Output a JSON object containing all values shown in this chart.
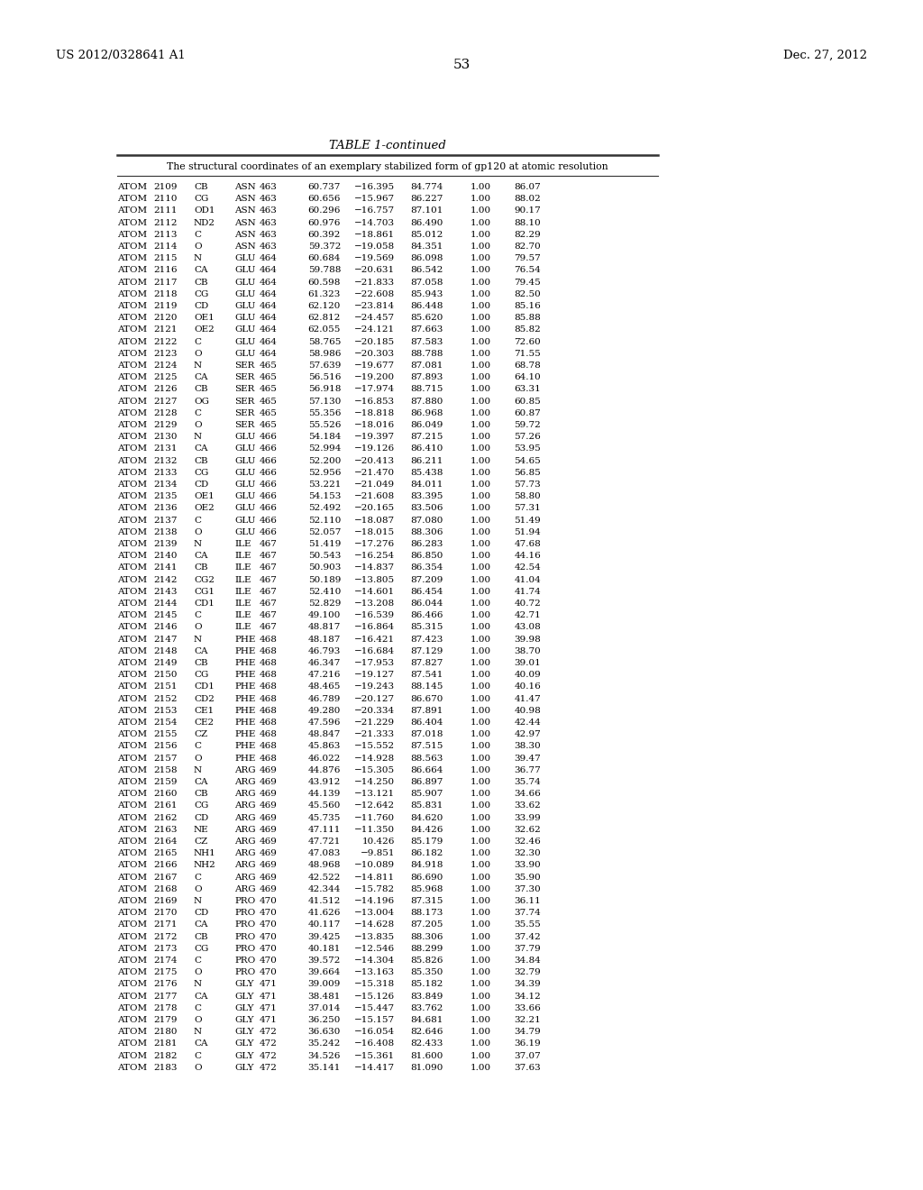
{
  "page_number": "53",
  "patent_number": "US 2012/0328641 A1",
  "date": "Dec. 27, 2012",
  "table_title": "TABLE 1-continued",
  "table_subtitle": "The structural coordinates of an exemplary stabilized form of gp120 at atomic resolution",
  "background_color": "#ffffff",
  "text_color": "#000000",
  "rows": [
    [
      "ATOM",
      "2109",
      "CB",
      "ASN",
      "463",
      "60.737",
      "−16.395",
      "84.774",
      "1.00",
      "86.07"
    ],
    [
      "ATOM",
      "2110",
      "CG",
      "ASN",
      "463",
      "60.656",
      "−15.967",
      "86.227",
      "1.00",
      "88.02"
    ],
    [
      "ATOM",
      "2111",
      "OD1",
      "ASN",
      "463",
      "60.296",
      "−16.757",
      "87.101",
      "1.00",
      "90.17"
    ],
    [
      "ATOM",
      "2112",
      "ND2",
      "ASN",
      "463",
      "60.976",
      "−14.703",
      "86.490",
      "1.00",
      "88.10"
    ],
    [
      "ATOM",
      "2113",
      "C",
      "ASN",
      "463",
      "60.392",
      "−18.861",
      "85.012",
      "1.00",
      "82.29"
    ],
    [
      "ATOM",
      "2114",
      "O",
      "ASN",
      "463",
      "59.372",
      "−19.058",
      "84.351",
      "1.00",
      "82.70"
    ],
    [
      "ATOM",
      "2115",
      "N",
      "GLU",
      "464",
      "60.684",
      "−19.569",
      "86.098",
      "1.00",
      "79.57"
    ],
    [
      "ATOM",
      "2116",
      "CA",
      "GLU",
      "464",
      "59.788",
      "−20.631",
      "86.542",
      "1.00",
      "76.54"
    ],
    [
      "ATOM",
      "2117",
      "CB",
      "GLU",
      "464",
      "60.598",
      "−21.833",
      "87.058",
      "1.00",
      "79.45"
    ],
    [
      "ATOM",
      "2118",
      "CG",
      "GLU",
      "464",
      "61.323",
      "−22.608",
      "85.943",
      "1.00",
      "82.50"
    ],
    [
      "ATOM",
      "2119",
      "CD",
      "GLU",
      "464",
      "62.120",
      "−23.814",
      "86.448",
      "1.00",
      "85.16"
    ],
    [
      "ATOM",
      "2120",
      "OE1",
      "GLU",
      "464",
      "62.812",
      "−24.457",
      "85.620",
      "1.00",
      "85.88"
    ],
    [
      "ATOM",
      "2121",
      "OE2",
      "GLU",
      "464",
      "62.055",
      "−24.121",
      "87.663",
      "1.00",
      "85.82"
    ],
    [
      "ATOM",
      "2122",
      "C",
      "GLU",
      "464",
      "58.765",
      "−20.185",
      "87.583",
      "1.00",
      "72.60"
    ],
    [
      "ATOM",
      "2123",
      "O",
      "GLU",
      "464",
      "58.986",
      "−20.303",
      "88.788",
      "1.00",
      "71.55"
    ],
    [
      "ATOM",
      "2124",
      "N",
      "SER",
      "465",
      "57.639",
      "−19.677",
      "87.081",
      "1.00",
      "68.78"
    ],
    [
      "ATOM",
      "2125",
      "CA",
      "SER",
      "465",
      "56.516",
      "−19.200",
      "87.893",
      "1.00",
      "64.10"
    ],
    [
      "ATOM",
      "2126",
      "CB",
      "SER",
      "465",
      "56.918",
      "−17.974",
      "88.715",
      "1.00",
      "63.31"
    ],
    [
      "ATOM",
      "2127",
      "OG",
      "SER",
      "465",
      "57.130",
      "−16.853",
      "87.880",
      "1.00",
      "60.85"
    ],
    [
      "ATOM",
      "2128",
      "C",
      "SER",
      "465",
      "55.356",
      "−18.818",
      "86.968",
      "1.00",
      "60.87"
    ],
    [
      "ATOM",
      "2129",
      "O",
      "SER",
      "465",
      "55.526",
      "−18.016",
      "86.049",
      "1.00",
      "59.72"
    ],
    [
      "ATOM",
      "2130",
      "N",
      "GLU",
      "466",
      "54.184",
      "−19.397",
      "87.215",
      "1.00",
      "57.26"
    ],
    [
      "ATOM",
      "2131",
      "CA",
      "GLU",
      "466",
      "52.994",
      "−19.126",
      "86.410",
      "1.00",
      "53.95"
    ],
    [
      "ATOM",
      "2132",
      "CB",
      "GLU",
      "466",
      "52.200",
      "−20.413",
      "86.211",
      "1.00",
      "54.65"
    ],
    [
      "ATOM",
      "2133",
      "CG",
      "GLU",
      "466",
      "52.956",
      "−21.470",
      "85.438",
      "1.00",
      "56.85"
    ],
    [
      "ATOM",
      "2134",
      "CD",
      "GLU",
      "466",
      "53.221",
      "−21.049",
      "84.011",
      "1.00",
      "57.73"
    ],
    [
      "ATOM",
      "2135",
      "OE1",
      "GLU",
      "466",
      "54.153",
      "−21.608",
      "83.395",
      "1.00",
      "58.80"
    ],
    [
      "ATOM",
      "2136",
      "OE2",
      "GLU",
      "466",
      "52.492",
      "−20.165",
      "83.506",
      "1.00",
      "57.31"
    ],
    [
      "ATOM",
      "2137",
      "C",
      "GLU",
      "466",
      "52.110",
      "−18.087",
      "87.080",
      "1.00",
      "51.49"
    ],
    [
      "ATOM",
      "2138",
      "O",
      "GLU",
      "466",
      "52.057",
      "−18.015",
      "88.306",
      "1.00",
      "51.94"
    ],
    [
      "ATOM",
      "2139",
      "N",
      "ILE",
      "467",
      "51.419",
      "−17.276",
      "86.283",
      "1.00",
      "47.68"
    ],
    [
      "ATOM",
      "2140",
      "CA",
      "ILE",
      "467",
      "50.543",
      "−16.254",
      "86.850",
      "1.00",
      "44.16"
    ],
    [
      "ATOM",
      "2141",
      "CB",
      "ILE",
      "467",
      "50.903",
      "−14.837",
      "86.354",
      "1.00",
      "42.54"
    ],
    [
      "ATOM",
      "2142",
      "CG2",
      "ILE",
      "467",
      "50.189",
      "−13.805",
      "87.209",
      "1.00",
      "41.04"
    ],
    [
      "ATOM",
      "2143",
      "CG1",
      "ILE",
      "467",
      "52.410",
      "−14.601",
      "86.454",
      "1.00",
      "41.74"
    ],
    [
      "ATOM",
      "2144",
      "CD1",
      "ILE",
      "467",
      "52.829",
      "−13.208",
      "86.044",
      "1.00",
      "40.72"
    ],
    [
      "ATOM",
      "2145",
      "C",
      "ILE",
      "467",
      "49.100",
      "−16.539",
      "86.466",
      "1.00",
      "42.71"
    ],
    [
      "ATOM",
      "2146",
      "O",
      "ILE",
      "467",
      "48.817",
      "−16.864",
      "85.315",
      "1.00",
      "43.08"
    ],
    [
      "ATOM",
      "2147",
      "N",
      "PHE",
      "468",
      "48.187",
      "−16.421",
      "87.423",
      "1.00",
      "39.98"
    ],
    [
      "ATOM",
      "2148",
      "CA",
      "PHE",
      "468",
      "46.793",
      "−16.684",
      "87.129",
      "1.00",
      "38.70"
    ],
    [
      "ATOM",
      "2149",
      "CB",
      "PHE",
      "468",
      "46.347",
      "−17.953",
      "87.827",
      "1.00",
      "39.01"
    ],
    [
      "ATOM",
      "2150",
      "CG",
      "PHE",
      "468",
      "47.216",
      "−19.127",
      "87.541",
      "1.00",
      "40.09"
    ],
    [
      "ATOM",
      "2151",
      "CD1",
      "PHE",
      "468",
      "48.465",
      "−19.243",
      "88.145",
      "1.00",
      "40.16"
    ],
    [
      "ATOM",
      "2152",
      "CD2",
      "PHE",
      "468",
      "46.789",
      "−20.127",
      "86.670",
      "1.00",
      "41.47"
    ],
    [
      "ATOM",
      "2153",
      "CE1",
      "PHE",
      "468",
      "49.280",
      "−20.334",
      "87.891",
      "1.00",
      "40.98"
    ],
    [
      "ATOM",
      "2154",
      "CE2",
      "PHE",
      "468",
      "47.596",
      "−21.229",
      "86.404",
      "1.00",
      "42.44"
    ],
    [
      "ATOM",
      "2155",
      "CZ",
      "PHE",
      "468",
      "48.847",
      "−21.333",
      "87.018",
      "1.00",
      "42.97"
    ],
    [
      "ATOM",
      "2156",
      "C",
      "PHE",
      "468",
      "45.863",
      "−15.552",
      "87.515",
      "1.00",
      "38.30"
    ],
    [
      "ATOM",
      "2157",
      "O",
      "PHE",
      "468",
      "46.022",
      "−14.928",
      "88.563",
      "1.00",
      "39.47"
    ],
    [
      "ATOM",
      "2158",
      "N",
      "ARG",
      "469",
      "44.876",
      "−15.305",
      "86.664",
      "1.00",
      "36.77"
    ],
    [
      "ATOM",
      "2159",
      "CA",
      "ARG",
      "469",
      "43.912",
      "−14.250",
      "86.897",
      "1.00",
      "35.74"
    ],
    [
      "ATOM",
      "2160",
      "CB",
      "ARG",
      "469",
      "44.139",
      "−13.121",
      "85.907",
      "1.00",
      "34.66"
    ],
    [
      "ATOM",
      "2161",
      "CG",
      "ARG",
      "469",
      "45.560",
      "−12.642",
      "85.831",
      "1.00",
      "33.62"
    ],
    [
      "ATOM",
      "2162",
      "CD",
      "ARG",
      "469",
      "45.735",
      "−11.760",
      "84.620",
      "1.00",
      "33.99"
    ],
    [
      "ATOM",
      "2163",
      "NE",
      "ARG",
      "469",
      "47.111",
      "−11.350",
      "84.426",
      "1.00",
      "32.62"
    ],
    [
      "ATOM",
      "2164",
      "CZ",
      "ARG",
      "469",
      "47.721",
      "10.426",
      "85.179",
      "1.00",
      "32.46"
    ],
    [
      "ATOM",
      "2165",
      "NH1",
      "ARG",
      "469",
      "47.083",
      "−9.851",
      "86.182",
      "1.00",
      "32.30"
    ],
    [
      "ATOM",
      "2166",
      "NH2",
      "ARG",
      "469",
      "48.968",
      "−10.089",
      "84.918",
      "1.00",
      "33.90"
    ],
    [
      "ATOM",
      "2167",
      "C",
      "ARG",
      "469",
      "42.522",
      "−14.811",
      "86.690",
      "1.00",
      "35.90"
    ],
    [
      "ATOM",
      "2168",
      "O",
      "ARG",
      "469",
      "42.344",
      "−15.782",
      "85.968",
      "1.00",
      "37.30"
    ],
    [
      "ATOM",
      "2169",
      "N",
      "PRO",
      "470",
      "41.512",
      "−14.196",
      "87.315",
      "1.00",
      "36.11"
    ],
    [
      "ATOM",
      "2170",
      "CD",
      "PRO",
      "470",
      "41.626",
      "−13.004",
      "88.173",
      "1.00",
      "37.74"
    ],
    [
      "ATOM",
      "2171",
      "CA",
      "PRO",
      "470",
      "40.117",
      "−14.628",
      "87.205",
      "1.00",
      "35.55"
    ],
    [
      "ATOM",
      "2172",
      "CB",
      "PRO",
      "470",
      "39.425",
      "−13.835",
      "88.306",
      "1.00",
      "37.42"
    ],
    [
      "ATOM",
      "2173",
      "CG",
      "PRO",
      "470",
      "40.181",
      "−12.546",
      "88.299",
      "1.00",
      "37.79"
    ],
    [
      "ATOM",
      "2174",
      "C",
      "PRO",
      "470",
      "39.572",
      "−14.304",
      "85.826",
      "1.00",
      "34.84"
    ],
    [
      "ATOM",
      "2175",
      "O",
      "PRO",
      "470",
      "39.664",
      "−13.163",
      "85.350",
      "1.00",
      "32.79"
    ],
    [
      "ATOM",
      "2176",
      "N",
      "GLY",
      "471",
      "39.009",
      "−15.318",
      "85.182",
      "1.00",
      "34.39"
    ],
    [
      "ATOM",
      "2177",
      "CA",
      "GLY",
      "471",
      "38.481",
      "−15.126",
      "83.849",
      "1.00",
      "34.12"
    ],
    [
      "ATOM",
      "2178",
      "C",
      "GLY",
      "471",
      "37.014",
      "−15.447",
      "83.762",
      "1.00",
      "33.66"
    ],
    [
      "ATOM",
      "2179",
      "O",
      "GLY",
      "471",
      "36.250",
      "−15.157",
      "84.681",
      "1.00",
      "32.21"
    ],
    [
      "ATOM",
      "2180",
      "N",
      "GLY",
      "472",
      "36.630",
      "−16.054",
      "82.646",
      "1.00",
      "34.79"
    ],
    [
      "ATOM",
      "2181",
      "CA",
      "GLY",
      "472",
      "35.242",
      "−16.408",
      "82.433",
      "1.00",
      "36.19"
    ],
    [
      "ATOM",
      "2182",
      "C",
      "GLY",
      "472",
      "34.526",
      "−15.361",
      "81.600",
      "1.00",
      "37.07"
    ],
    [
      "ATOM",
      "2183",
      "O",
      "GLY",
      "472",
      "35.141",
      "−14.417",
      "81.090",
      "1.00",
      "37.63"
    ]
  ]
}
